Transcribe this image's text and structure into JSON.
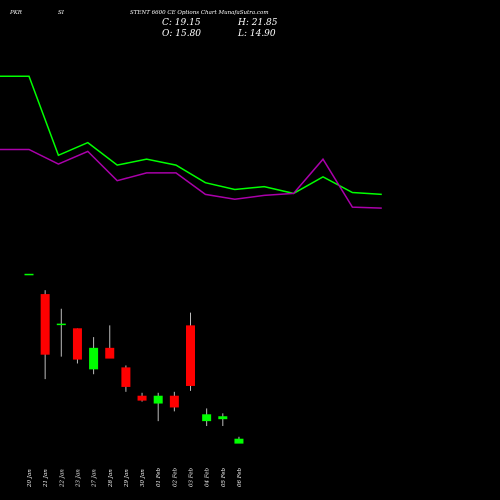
{
  "header": {
    "left_label": "PKR",
    "mid_label": "SI",
    "title": "STENT 6600 CE Options Chart MunafaSutra.com",
    "close_text": "C: 19.15",
    "open_text": "O: 15.80",
    "high_text": "H: 21.85",
    "low_text": "L: 14.90"
  },
  "colors": {
    "background": "#000000",
    "up": "#00ff00",
    "down": "#ff0000",
    "upper_line": "#00ff00",
    "lower_line": "#aa00aa",
    "text": "#ffffff"
  },
  "chart_data": {
    "type": "candlestick",
    "title": "STENT 6600 CE Options Chart MunafaSutra.com",
    "categories": [
      "20 Jan",
      "21 Jan",
      "22 Jan",
      "23 Jan",
      "27 Jan",
      "28 Jan",
      "29 Jan",
      "30 Jan",
      "01 Feb",
      "02 Feb",
      "03 Feb",
      "04 Feb",
      "05 Feb",
      "06 Feb"
    ],
    "candles": [
      {
        "date": "20 Jan",
        "open": 140,
        "high": 140,
        "low": 140,
        "close": 140,
        "dir": "up"
      },
      {
        "date": "21 Jan",
        "open": 120,
        "high": 124,
        "low": 33,
        "close": 58,
        "dir": "down"
      },
      {
        "date": "22 Jan",
        "open": 89,
        "high": 105,
        "low": 56,
        "close": 89,
        "dir": "up"
      },
      {
        "date": "23 Jan",
        "open": 85,
        "high": 85,
        "low": 49,
        "close": 53,
        "dir": "down"
      },
      {
        "date": "27 Jan",
        "open": 43,
        "high": 76,
        "low": 38,
        "close": 65,
        "dir": "up"
      },
      {
        "date": "28 Jan",
        "open": 65,
        "high": 88,
        "low": 55,
        "close": 54,
        "dir": "down"
      },
      {
        "date": "29 Jan",
        "open": 45,
        "high": 47,
        "low": 20,
        "close": 25,
        "dir": "down"
      },
      {
        "date": "30 Jan",
        "open": 16,
        "high": 19,
        "low": 10,
        "close": 11,
        "dir": "down"
      },
      {
        "date": "01 Feb",
        "open": 8,
        "high": 19,
        "low": -10,
        "close": 16,
        "dir": "up"
      },
      {
        "date": "02 Feb",
        "open": 16,
        "high": 20,
        "low": 0,
        "close": 4,
        "dir": "down"
      },
      {
        "date": "03 Feb",
        "open": 88,
        "high": 101,
        "low": 21,
        "close": 26,
        "dir": "down"
      },
      {
        "date": "04 Feb",
        "open": -10,
        "high": 3,
        "low": -15,
        "close": -3,
        "dir": "up"
      },
      {
        "date": "05 Feb",
        "open": -8,
        "high": -2,
        "low": -15,
        "close": -5,
        "dir": "up"
      },
      {
        "date": "06 Feb",
        "open": -33,
        "high": -26,
        "low": -32,
        "close": -28,
        "dir": "up"
      }
    ],
    "lines": [
      {
        "color": "#00ff00",
        "values": [
          343,
          343,
          262,
          275,
          252,
          258,
          252,
          234,
          227,
          230,
          223,
          240,
          224,
          222
        ]
      },
      {
        "color": "#aa00aa",
        "values": [
          268,
          268,
          253,
          266,
          236,
          244,
          244,
          222,
          217,
          221,
          223,
          258,
          209,
          208
        ]
      }
    ],
    "ylim": [
      -60,
      380
    ],
    "grid": false
  }
}
